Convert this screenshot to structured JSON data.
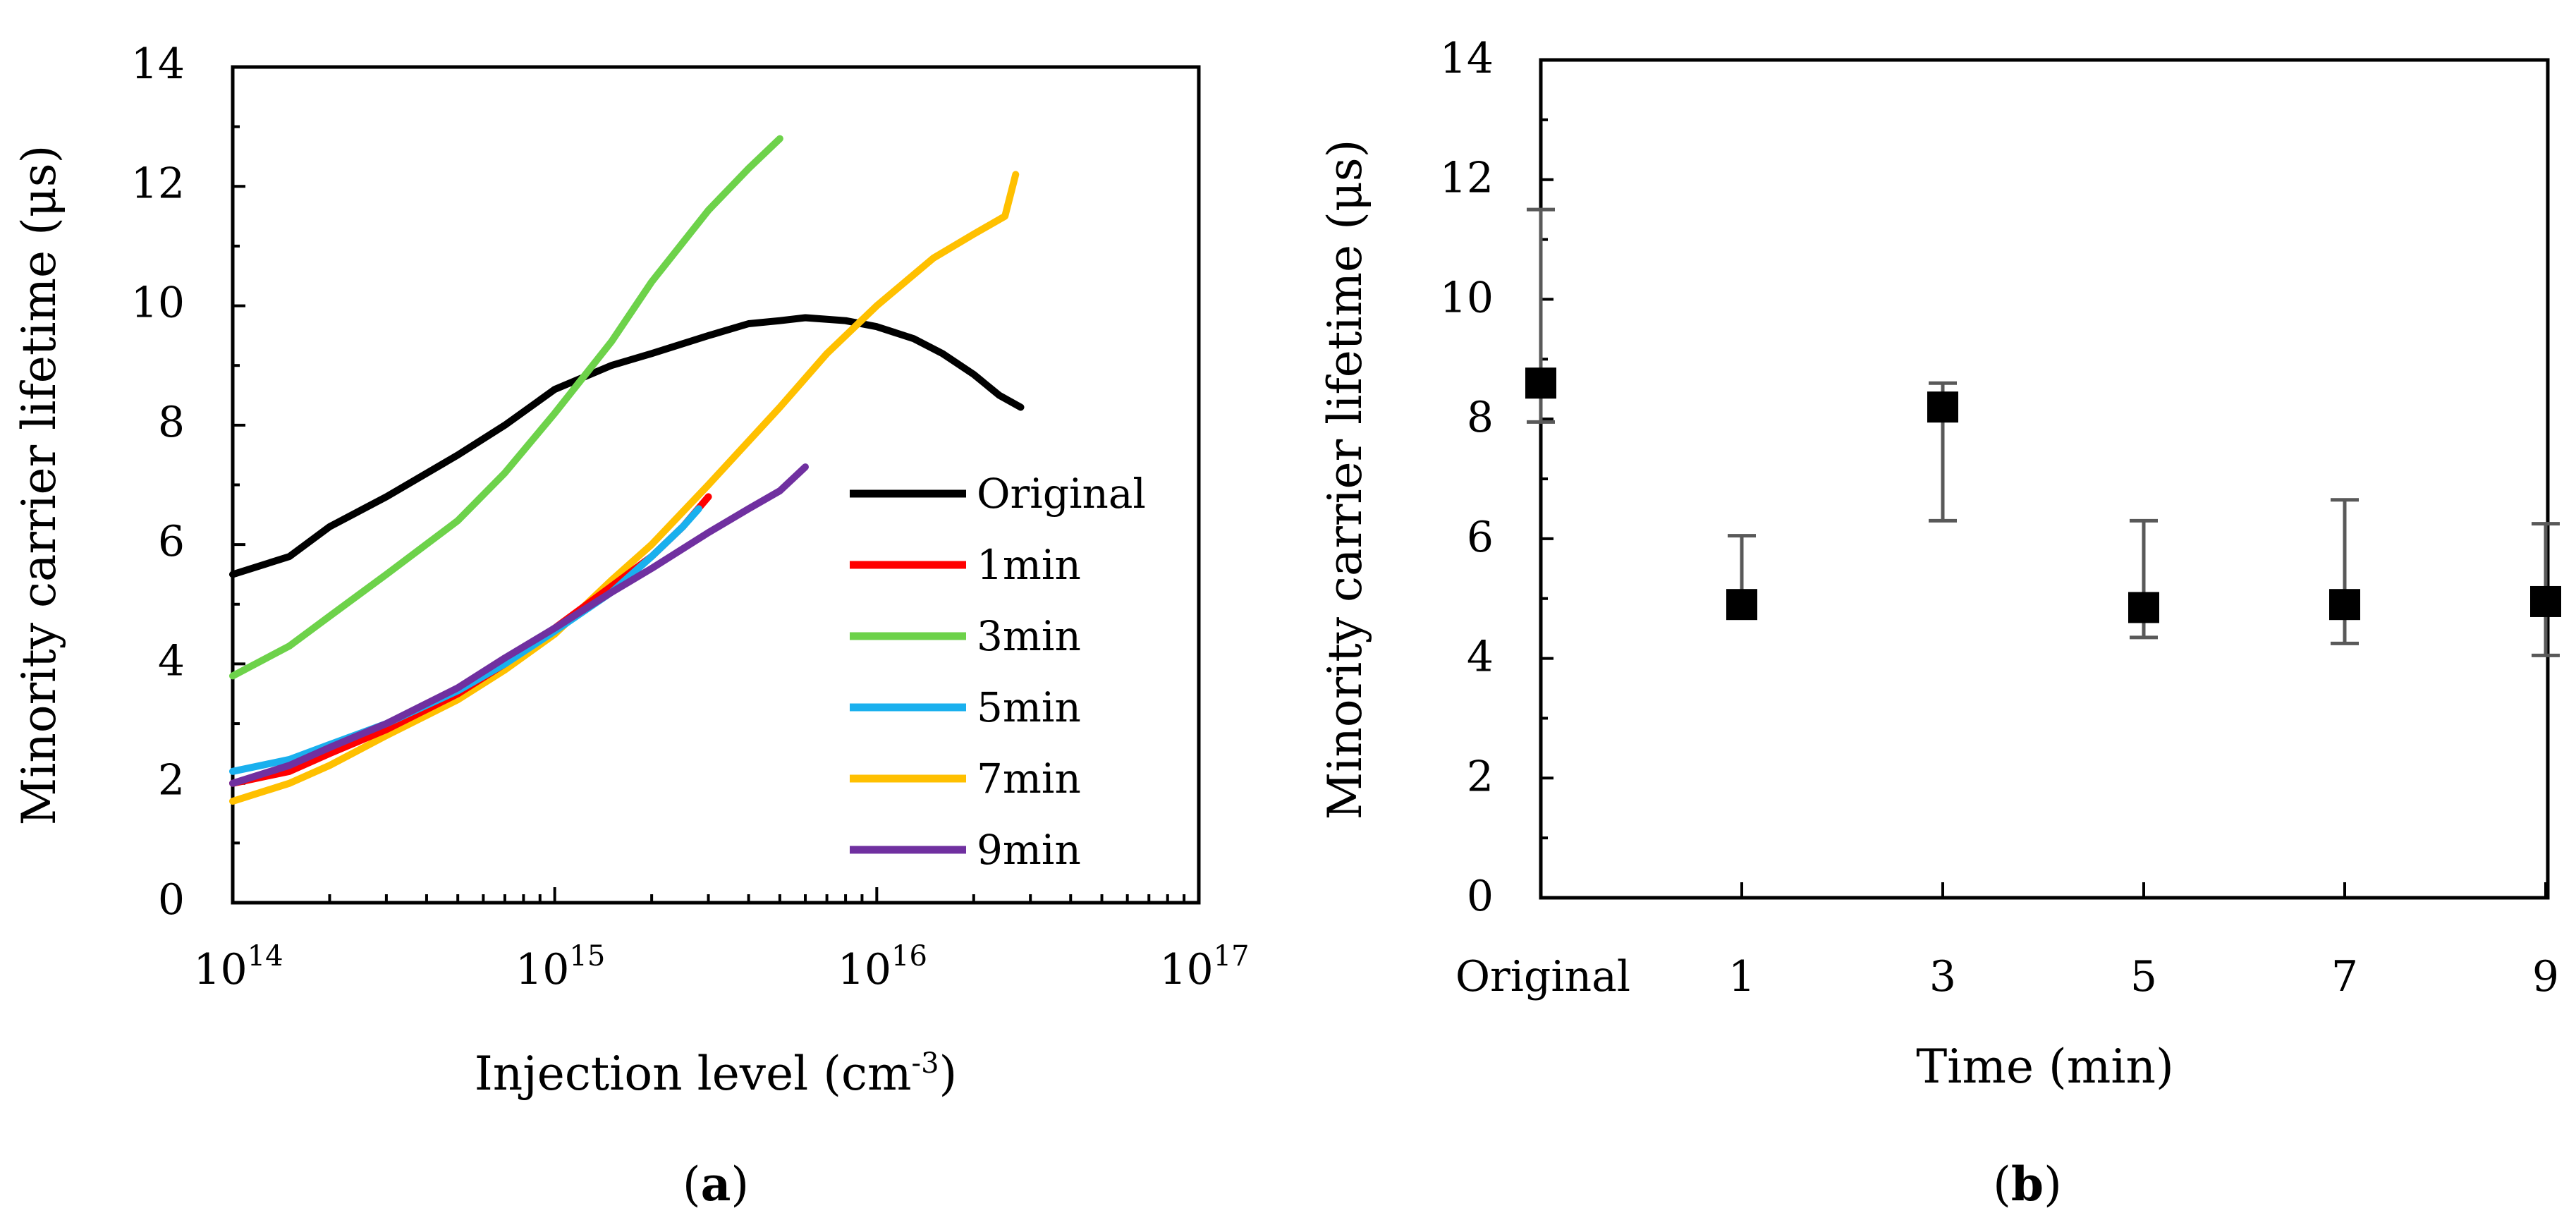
{
  "chart_data": [
    {
      "panel": "a",
      "panel_label_open": "(",
      "panel_label_letter": "a",
      "panel_label_close": ")",
      "type": "line",
      "title": "",
      "xlabel": "Injection level (cm",
      "xlabel_sup": "-3",
      "xlabel_close": ")",
      "ylabel": "Minority carrier lifetime (μs)",
      "x_scale": "log",
      "xlim": [
        100000000000000.0,
        1e+17
      ],
      "ylim": [
        0,
        14
      ],
      "x_ticks": [
        {
          "base": "10",
          "exp": "14",
          "value": 100000000000000.0
        },
        {
          "base": "10",
          "exp": "15",
          "value": 1000000000000000.0
        },
        {
          "base": "10",
          "exp": "16",
          "value": 1e+16
        },
        {
          "base": "10",
          "exp": "17",
          "value": 1e+17
        }
      ],
      "y_ticks": [
        "0",
        "2",
        "4",
        "6",
        "8",
        "10",
        "12",
        "14"
      ],
      "legend_position": "right-middle",
      "series": [
        {
          "name": "Original",
          "color": "#000000",
          "x": [
            100000000000000.0,
            150000000000000.0,
            200000000000000.0,
            300000000000000.0,
            500000000000000.0,
            700000000000000.0,
            1000000000000000.0,
            1500000000000000.0,
            2000000000000000.0,
            3000000000000000.0,
            4000000000000000.0,
            5000000000000000.0,
            6000000000000000.0,
            8000000000000000.0,
            1e+16,
            1.3e+16,
            1.6e+16,
            2e+16,
            2.4e+16,
            2.8e+16
          ],
          "y": [
            5.5,
            5.8,
            6.3,
            6.8,
            7.5,
            8.0,
            8.6,
            9.0,
            9.2,
            9.5,
            9.7,
            9.75,
            9.8,
            9.75,
            9.65,
            9.45,
            9.2,
            8.85,
            8.5,
            8.3
          ]
        },
        {
          "name": "1min",
          "color": "#ff0000",
          "x": [
            100000000000000.0,
            150000000000000.0,
            200000000000000.0,
            300000000000000.0,
            500000000000000.0,
            700000000000000.0,
            1000000000000000.0,
            1500000000000000.0,
            2000000000000000.0,
            2500000000000000.0,
            3000000000000000.0
          ],
          "y": [
            2.0,
            2.2,
            2.5,
            2.9,
            3.5,
            4.0,
            4.6,
            5.3,
            5.8,
            6.3,
            6.8
          ]
        },
        {
          "name": "3min",
          "color": "#6dd24a",
          "x": [
            100000000000000.0,
            150000000000000.0,
            200000000000000.0,
            300000000000000.0,
            500000000000000.0,
            700000000000000.0,
            1000000000000000.0,
            1500000000000000.0,
            2000000000000000.0,
            3000000000000000.0,
            4000000000000000.0,
            5000000000000000.0
          ],
          "y": [
            3.8,
            4.3,
            4.8,
            5.5,
            6.4,
            7.2,
            8.2,
            9.4,
            10.4,
            11.6,
            12.3,
            12.8
          ]
        },
        {
          "name": "5min",
          "color": "#1ab0ee",
          "x": [
            100000000000000.0,
            150000000000000.0,
            200000000000000.0,
            300000000000000.0,
            500000000000000.0,
            700000000000000.0,
            1000000000000000.0,
            1500000000000000.0,
            2000000000000000.0,
            2500000000000000.0,
            2800000000000000.0
          ],
          "y": [
            2.2,
            2.4,
            2.65,
            3.0,
            3.55,
            4.0,
            4.55,
            5.2,
            5.8,
            6.3,
            6.6
          ]
        },
        {
          "name": "7min",
          "color": "#ffc000",
          "x": [
            100000000000000.0,
            150000000000000.0,
            200000000000000.0,
            300000000000000.0,
            500000000000000.0,
            700000000000000.0,
            1000000000000000.0,
            1500000000000000.0,
            2000000000000000.0,
            3000000000000000.0,
            5000000000000000.0,
            7000000000000000.0,
            1e+16,
            1.5e+16,
            2e+16,
            2.5e+16,
            2.7e+16
          ],
          "y": [
            1.7,
            2.0,
            2.3,
            2.8,
            3.4,
            3.9,
            4.5,
            5.4,
            6.0,
            7.0,
            8.3,
            9.2,
            10.0,
            10.8,
            11.2,
            11.5,
            12.2
          ]
        },
        {
          "name": "9min",
          "color": "#7030a0",
          "x": [
            100000000000000.0,
            150000000000000.0,
            200000000000000.0,
            300000000000000.0,
            500000000000000.0,
            700000000000000.0,
            1000000000000000.0,
            1500000000000000.0,
            2000000000000000.0,
            3000000000000000.0,
            4000000000000000.0,
            5000000000000000.0,
            6000000000000000.0
          ],
          "y": [
            2.0,
            2.3,
            2.6,
            3.0,
            3.6,
            4.1,
            4.6,
            5.2,
            5.6,
            6.2,
            6.6,
            6.9,
            7.3
          ]
        }
      ]
    },
    {
      "panel": "b",
      "panel_label_open": "(",
      "panel_label_letter": "b",
      "panel_label_close": ")",
      "type": "scatter",
      "title": "",
      "xlabel": "Time (min)",
      "ylabel": "Minority carrier lifetime (μs)",
      "ylim": [
        0,
        14
      ],
      "y_ticks": [
        "0",
        "2",
        "4",
        "6",
        "8",
        "10",
        "12",
        "14"
      ],
      "categories": [
        "Original",
        "1",
        "3",
        "5",
        "7",
        "9"
      ],
      "values": [
        8.6,
        4.9,
        8.2,
        4.85,
        4.9,
        4.95
      ],
      "error_low": [
        7.95,
        4.7,
        6.3,
        4.35,
        4.25,
        4.05
      ],
      "error_high": [
        11.5,
        6.05,
        8.6,
        6.3,
        6.65,
        6.25
      ],
      "marker": "square",
      "marker_color": "#000000",
      "error_color": "#595959"
    }
  ]
}
